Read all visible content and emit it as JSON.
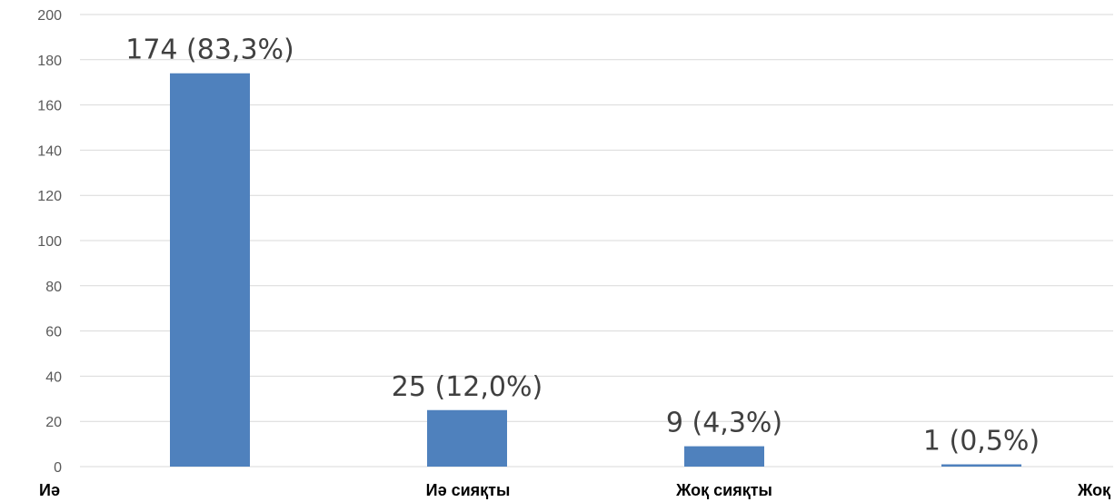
{
  "chart_data": {
    "type": "bar",
    "categories": [
      "Иә",
      "Иә сияқты",
      "Жоқ сияқты",
      "Жоқ"
    ],
    "values": [
      174,
      25,
      9,
      1
    ],
    "data_labels": [
      "174 (83,3%)",
      "25 (12,0%)",
      "9 (4,3%)",
      "1 (0,5%)"
    ],
    "ylim": [
      0,
      200
    ],
    "yticks": [
      0,
      20,
      40,
      60,
      80,
      100,
      120,
      140,
      160,
      180,
      200
    ],
    "title": "",
    "xlabel": "",
    "ylabel": "",
    "grid": true,
    "legend": "none",
    "bar_color": "#4f81bd"
  }
}
